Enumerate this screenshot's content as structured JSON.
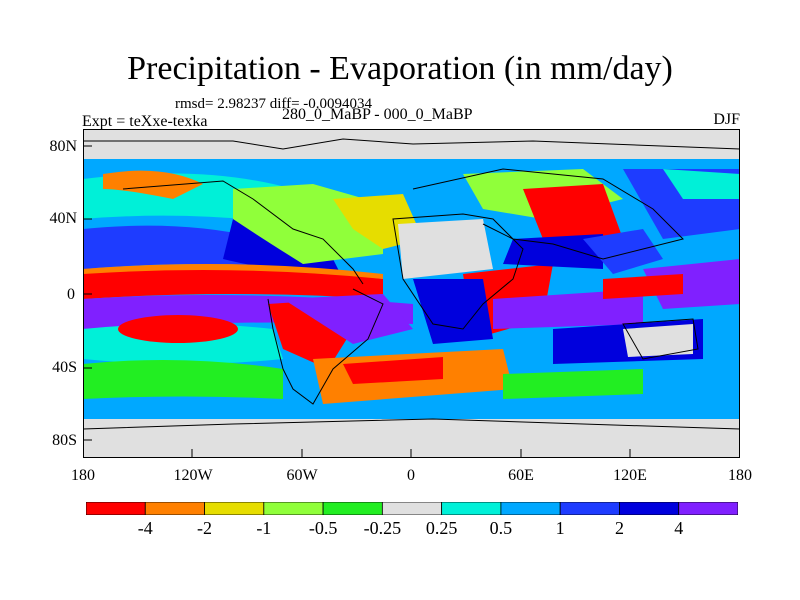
{
  "title": "Precipitation - Evaporation (in mm/day)",
  "stats": "rmsd= 2.98237 diff= -0.0094034",
  "expt": "Expt = teXxe-texka",
  "subtitle": "280_0_MaBP - 000_0_MaBP",
  "season": "DJF",
  "lat_labels": [
    "80N",
    "40N",
    "0",
    "40S",
    "80S"
  ],
  "lon_labels": [
    "180",
    "120W",
    "60W",
    "0",
    "60E",
    "120E",
    "180"
  ],
  "colorbar": {
    "colors": [
      "#ff0000",
      "#ff8000",
      "#e6dd00",
      "#90ff3a",
      "#22ee22",
      "#e0e0e0",
      "#00f0d8",
      "#00a8ff",
      "#1e3cff",
      "#0000dd",
      "#8020ff"
    ],
    "labels": [
      "-4",
      "-2",
      "-1",
      "-0.5",
      "-0.25",
      "0.25",
      "0.5",
      "1",
      "2",
      "4"
    ]
  }
}
